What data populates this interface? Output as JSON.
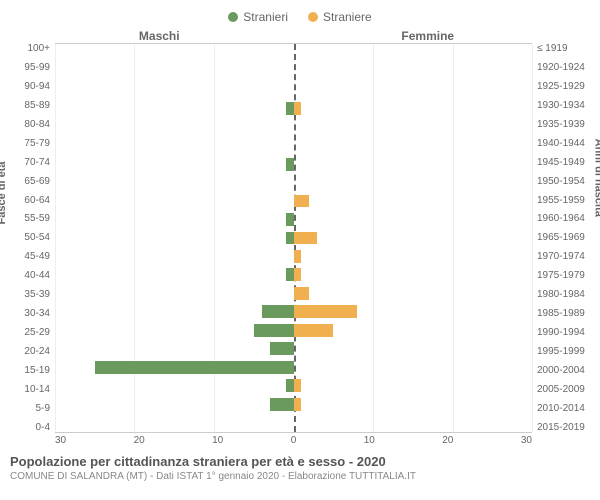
{
  "chart": {
    "type": "population-pyramid",
    "legend": [
      {
        "label": "Stranieri",
        "color": "#6a9a5e"
      },
      {
        "label": "Straniere",
        "color": "#f0b050"
      }
    ],
    "headers": {
      "left": "Maschi",
      "right": "Femmine"
    },
    "axis_labels": {
      "left": "Fasce di età",
      "right": "Anni di nascita"
    },
    "age_groups": [
      "100+",
      "95-99",
      "90-94",
      "85-89",
      "80-84",
      "75-79",
      "70-74",
      "65-69",
      "60-64",
      "55-59",
      "50-54",
      "45-49",
      "40-44",
      "35-39",
      "30-34",
      "25-29",
      "20-24",
      "15-19",
      "10-14",
      "5-9",
      "0-4"
    ],
    "birth_years": [
      "≤ 1919",
      "1920-1924",
      "1925-1929",
      "1930-1934",
      "1935-1939",
      "1940-1944",
      "1945-1949",
      "1950-1954",
      "1955-1959",
      "1960-1964",
      "1965-1969",
      "1970-1974",
      "1975-1979",
      "1980-1984",
      "1985-1989",
      "1990-1994",
      "1995-1999",
      "2000-2004",
      "2005-2009",
      "2010-2014",
      "2015-2019"
    ],
    "male_values": [
      0,
      0,
      0,
      1,
      0,
      0,
      1,
      0,
      0,
      1,
      1,
      0,
      1,
      0,
      4,
      5,
      3,
      25,
      1,
      3,
      0
    ],
    "female_values": [
      0,
      0,
      0,
      1,
      0,
      0,
      0,
      0,
      2,
      0,
      3,
      1,
      1,
      2,
      8,
      5,
      0,
      0,
      1,
      1,
      0
    ],
    "x_max": 30,
    "x_ticks": [
      30,
      20,
      10,
      0,
      10,
      20,
      30
    ],
    "colors": {
      "male": "#6a9a5e",
      "female": "#f0b050",
      "grid": "#eeeeee",
      "axis_text": "#666666"
    }
  },
  "footer": {
    "title": "Popolazione per cittadinanza straniera per età e sesso - 2020",
    "subtitle": "COMUNE DI SALANDRA (MT) - Dati ISTAT 1° gennaio 2020 - Elaborazione TUTTITALIA.IT"
  }
}
